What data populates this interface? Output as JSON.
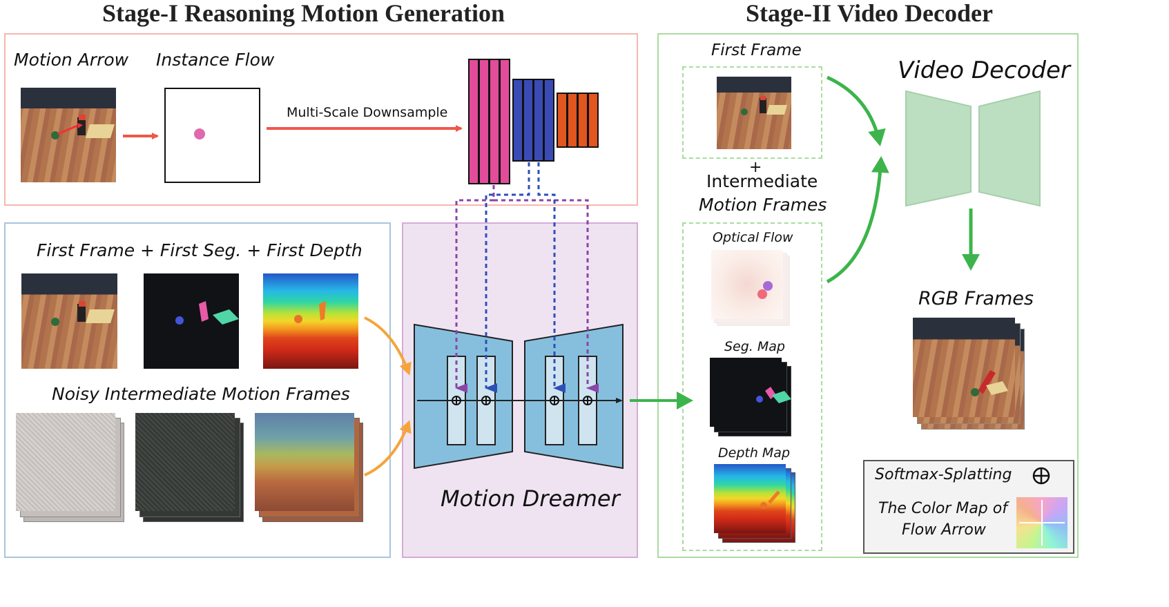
{
  "titles": {
    "stage1": "Stage-I Reasoning Motion Generation",
    "stage2": "Stage-II Video Decoder"
  },
  "stage1_top": {
    "motion_arrow": "Motion Arrow",
    "instance_flow": "Instance Flow",
    "downsample": "Multi-Scale Downsample"
  },
  "stage1_bottom": {
    "first_inputs": "First Frame + First Seg. + First Depth",
    "noisy": "Noisy Intermediate Motion Frames"
  },
  "center": {
    "motion_dreamer": "Motion Dreamer"
  },
  "stage2": {
    "first_frame": "First Frame",
    "plus": "+",
    "intermediate_line1": "Intermediate",
    "intermediate_line2": "Motion Frames",
    "optical_flow": "Optical Flow",
    "seg_map": "Seg. Map",
    "depth_map": "Depth Map",
    "video_decoder": "Video Decoder",
    "rgb_frames": "RGB Frames"
  },
  "legend": {
    "softmax": "Softmax-Splatting",
    "color_map_line1": "The Color Map of",
    "color_map_line2": "Flow Arrow"
  },
  "colors": {
    "stage1_top_border": "#f4b8b0",
    "stage1_bottom_border": "#a9c4de",
    "center_fill": "#efe3f2",
    "center_border": "#d7a9d8",
    "stage2_border": "#a9dca0",
    "pink": "#e24c9a",
    "blue": "#3a4bb5",
    "orange": "#e2561f",
    "unet": "#86bfdd",
    "decoder": "#bcdfc1",
    "green_arrow": "#3cb44b",
    "orange_arrow": "#f5a43a",
    "red_arrow": "#f0574a",
    "purple_dash": "#8a45a8",
    "blue_dash": "#2d4fb8"
  }
}
